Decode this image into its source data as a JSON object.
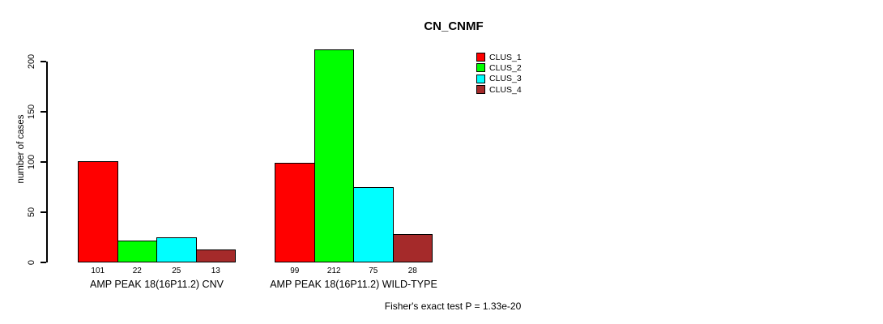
{
  "chart_data": {
    "type": "bar",
    "title": "CN_CNMF",
    "xlabel": "",
    "ylabel": "number of cases",
    "ylim": [
      0,
      220
    ],
    "yticks": [
      0,
      50,
      100,
      150,
      200
    ],
    "grid": false,
    "legend_position": "top-right",
    "categories": [
      "AMP PEAK 18(16P11.2) CNV",
      "AMP PEAK 18(16P11.2) WILD-TYPE"
    ],
    "series": [
      {
        "name": "CLUS_1",
        "color": "#FF0000",
        "values": [
          101,
          99
        ]
      },
      {
        "name": "CLUS_2",
        "color": "#00FF00",
        "values": [
          22,
          212
        ]
      },
      {
        "name": "CLUS_3",
        "color": "#00FFFF",
        "values": [
          25,
          75
        ]
      },
      {
        "name": "CLUS_4",
        "color": "#A52A2A",
        "values": [
          13,
          28
        ]
      }
    ],
    "bar_value_labels_shown": true,
    "annotation": "Fisher's exact test P = 1.33e-20"
  },
  "colors": {
    "background": "#FFFFFF",
    "axis": "#000000",
    "text": "#000000"
  }
}
